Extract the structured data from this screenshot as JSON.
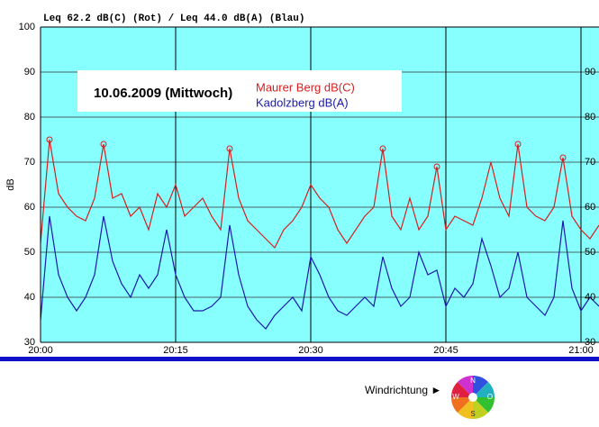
{
  "chart_data": {
    "type": "line",
    "title": "Leq 62.2 dB(C) (Rot) / Leq 44.0 dB(A) (Blau)",
    "ylabel": "dB",
    "annotation": "10.06.2009 (Mittwoch)",
    "x": [
      "20:00",
      "20:01",
      "20:02",
      "20:03",
      "20:04",
      "20:05",
      "20:06",
      "20:07",
      "20:08",
      "20:09",
      "20:10",
      "20:11",
      "20:12",
      "20:13",
      "20:14",
      "20:15",
      "20:16",
      "20:17",
      "20:18",
      "20:19",
      "20:20",
      "20:21",
      "20:22",
      "20:23",
      "20:24",
      "20:25",
      "20:26",
      "20:27",
      "20:28",
      "20:29",
      "20:30",
      "20:31",
      "20:32",
      "20:33",
      "20:34",
      "20:35",
      "20:36",
      "20:37",
      "20:38",
      "20:39",
      "20:40",
      "20:41",
      "20:42",
      "20:43",
      "20:44",
      "20:45",
      "20:46",
      "20:47",
      "20:48",
      "20:49",
      "20:50",
      "20:51",
      "20:52",
      "20:53",
      "20:54",
      "20:55",
      "20:56",
      "20:57",
      "20:58",
      "20:59",
      "21:00",
      "21:01",
      "21:02"
    ],
    "series": [
      {
        "name": "Maurer Berg dB(C)",
        "color": "#d42020",
        "peak_x": [
          "20:01",
          "20:07",
          "20:21",
          "20:38",
          "20:44",
          "20:53",
          "20:58"
        ],
        "values": [
          52,
          75,
          63,
          60,
          58,
          57,
          62,
          74,
          62,
          63,
          58,
          60,
          55,
          63,
          60,
          65,
          58,
          60,
          62,
          58,
          55,
          73,
          62,
          57,
          55,
          53,
          51,
          55,
          57,
          60,
          65,
          62,
          60,
          55,
          52,
          55,
          58,
          60,
          73,
          58,
          55,
          62,
          55,
          58,
          69,
          55,
          58,
          57,
          56,
          62,
          70,
          62,
          58,
          74,
          60,
          58,
          57,
          60,
          71,
          58,
          55,
          53,
          56
        ]
      },
      {
        "name": "Kadolzberg dB(A)",
        "color": "#1a1aa8",
        "values": [
          35,
          58,
          45,
          40,
          37,
          40,
          45,
          58,
          48,
          43,
          40,
          45,
          42,
          45,
          55,
          45,
          40,
          37,
          37,
          38,
          40,
          56,
          45,
          38,
          35,
          33,
          36,
          38,
          40,
          37,
          49,
          45,
          40,
          37,
          36,
          38,
          40,
          38,
          49,
          42,
          38,
          40,
          50,
          45,
          46,
          38,
          42,
          40,
          43,
          53,
          47,
          40,
          42,
          50,
          40,
          38,
          36,
          40,
          57,
          42,
          37,
          40,
          38
        ]
      }
    ],
    "xlim": [
      "20:00",
      "21:02"
    ],
    "xticks": [
      "20:00",
      "20:15",
      "20:30",
      "20:45",
      "21:00"
    ],
    "ylim": [
      30,
      100
    ],
    "yticks": [
      30,
      40,
      50,
      60,
      70,
      80,
      90,
      100
    ],
    "y2lim": [
      30,
      100
    ],
    "y2ticks": [
      30,
      40,
      50,
      60,
      70,
      80,
      90
    ],
    "grid": true,
    "background": "#88ffff",
    "wind": {
      "label": "Windrichtung ►",
      "directions": [
        "N",
        "O",
        "S",
        "W"
      ]
    }
  }
}
